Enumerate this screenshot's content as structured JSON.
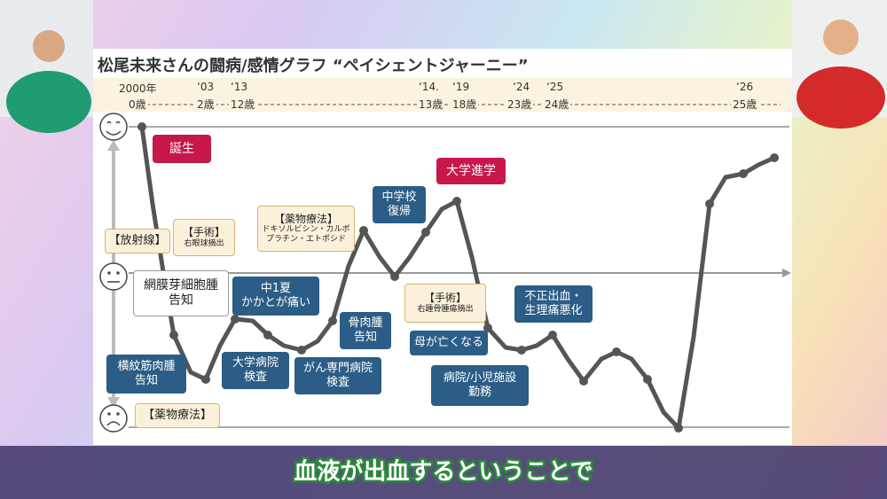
{
  "header": {
    "title": "松尾未来さんの闘病/感情グラフ “ペイシェントジャーニー”"
  },
  "timeline": {
    "years": [
      "2000年",
      "‘03",
      "‘13",
      "‘14.",
      "‘19",
      "‘24",
      "‘25",
      "‘26"
    ],
    "ages": [
      "0歳",
      "2歳",
      "12歳",
      "13歳",
      "18歳",
      "23歳",
      "24歳",
      "25歳"
    ]
  },
  "annotations": [
    {
      "lines": [
        "誕生"
      ]
    },
    {
      "lines": [
        "【放射線】"
      ]
    },
    {
      "lines": [
        "【手術】",
        "右眼球摘出"
      ]
    },
    {
      "lines": [
        "網膜芽細胞腫",
        "告知"
      ]
    },
    {
      "lines": [
        "横紋筋肉腫",
        "告知"
      ]
    },
    {
      "lines": [
        "【薬物療法】"
      ]
    },
    {
      "lines": [
        "中1夏",
        "かかとが痛い"
      ]
    },
    {
      "lines": [
        "大学病院",
        "検査"
      ]
    },
    {
      "lines": [
        "がん専門病院",
        "検査"
      ]
    },
    {
      "lines": [
        "骨肉腫",
        "告知"
      ]
    },
    {
      "lines": [
        "【薬物療法】",
        "ドキソルビシン・カルボ",
        "プラチン・エトポシド"
      ]
    },
    {
      "lines": [
        "中学校",
        "復帰"
      ]
    },
    {
      "lines": [
        "大学進学"
      ]
    },
    {
      "lines": [
        "【手術】",
        "右踵骨腫瘍摘出"
      ]
    },
    {
      "lines": [
        "母が亡くなる"
      ]
    },
    {
      "lines": [
        "病院/小児施設",
        "勤務"
      ]
    },
    {
      "lines": [
        "不正出血・",
        "生理痛悪化"
      ]
    }
  ],
  "caption": "血液が出血するということで"
}
